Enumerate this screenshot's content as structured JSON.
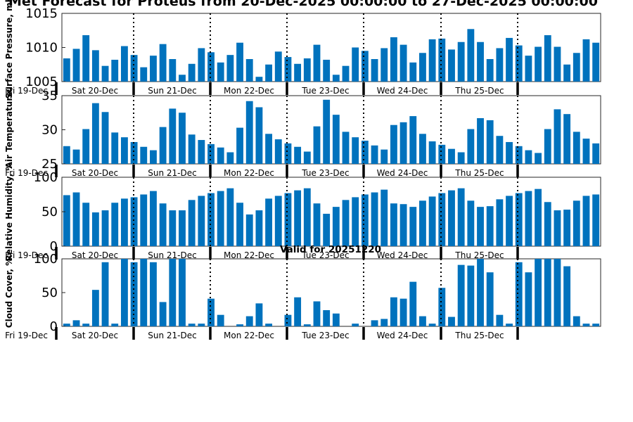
{
  "figure": {
    "title": "Met Forecast for Proteus from 20-Dec-2025 00:00:00 to 27-Dec-2025 00:00:00",
    "valid_label": "Valid for 20251220",
    "day_labels": [
      "Fri 19-Dec",
      "Sat 20-Dec",
      "Sun 21-Dec",
      "Mon 22-Dec",
      "Tue 23-Dec",
      "Wed 24-Dec",
      "Thu 25-Dec"
    ],
    "bar_color": "#0072BD"
  },
  "chart_data": [
    {
      "type": "bar",
      "ylabel": "Surface Pressure, mb",
      "ylim": [
        1005,
        1015
      ],
      "yticks": [
        1005,
        1010,
        1015
      ],
      "values": [
        1008.4,
        1009.8,
        1011.8,
        1009.6,
        1007.3,
        1008.2,
        1010.2,
        1008.9,
        1007.1,
        1008.8,
        1010.5,
        1008.3,
        1006.0,
        1007.6,
        1009.9,
        1009.3,
        1007.8,
        1008.9,
        1010.7,
        1008.3,
        1005.7,
        1007.5,
        1009.4,
        1008.6,
        1007.6,
        1008.4,
        1010.4,
        1008.2,
        1006.0,
        1007.3,
        1010.0,
        1009.5,
        1008.3,
        1009.9,
        1011.5,
        1010.4,
        1007.8,
        1009.2,
        1011.2,
        1011.3,
        1009.7,
        1010.8,
        1012.7,
        1010.8,
        1008.3,
        1009.9,
        1011.4,
        1010.3,
        1008.8,
        1010.1,
        1011.8,
        1010.1,
        1007.5,
        1009.2,
        1011.2,
        1010.7
      ]
    },
    {
      "type": "bar",
      "ylabel": "Air Temperature",
      "ylim": [
        25,
        35
      ],
      "yticks": [
        25,
        30,
        35
      ],
      "values": [
        27.6,
        27.1,
        30.1,
        33.9,
        32.6,
        29.6,
        28.9,
        28.2,
        27.5,
        27.0,
        30.4,
        33.1,
        32.5,
        29.3,
        28.5,
        27.9,
        27.4,
        26.7,
        30.3,
        34.2,
        33.3,
        29.4,
        28.6,
        28.0,
        27.5,
        26.8,
        30.5,
        34.4,
        32.2,
        29.7,
        28.9,
        28.4,
        27.7,
        27.1,
        30.7,
        31.1,
        32.0,
        29.4,
        28.3,
        27.8,
        27.2,
        26.7,
        30.1,
        31.7,
        31.4,
        29.1,
        28.2,
        27.6,
        27.0,
        26.6,
        30.1,
        33.0,
        32.3,
        29.7,
        28.7,
        28.0
      ]
    },
    {
      "type": "bar",
      "ylabel": "Relative Humidity, %",
      "ylim": [
        0,
        100
      ],
      "yticks": [
        0,
        50,
        100
      ],
      "values": [
        74,
        78,
        63,
        49,
        52,
        63,
        69,
        71,
        75,
        80,
        62,
        52,
        52,
        67,
        73,
        77,
        80,
        84,
        63,
        46,
        52,
        69,
        73,
        77,
        81,
        84,
        62,
        47,
        57,
        67,
        71,
        75,
        78,
        82,
        62,
        61,
        57,
        66,
        72,
        77,
        81,
        84,
        66,
        57,
        58,
        68,
        73,
        77,
        80,
        83,
        64,
        52,
        53,
        66,
        73,
        75
      ]
    },
    {
      "type": "bar",
      "ylabel": "Cloud Cover, %",
      "ylim": [
        0,
        100
      ],
      "yticks": [
        0,
        50,
        100
      ],
      "values": [
        4,
        9,
        4,
        54,
        95,
        4,
        100,
        95,
        100,
        95,
        36,
        100,
        100,
        4,
        4,
        41,
        17,
        0,
        3,
        15,
        34,
        4,
        0,
        17,
        43,
        3,
        37,
        24,
        19,
        0,
        4,
        0,
        9,
        11,
        43,
        41,
        66,
        15,
        4,
        57,
        14,
        91,
        90,
        100,
        80,
        17,
        4,
        95,
        80,
        100,
        100,
        100,
        89,
        15,
        4,
        4
      ]
    }
  ]
}
